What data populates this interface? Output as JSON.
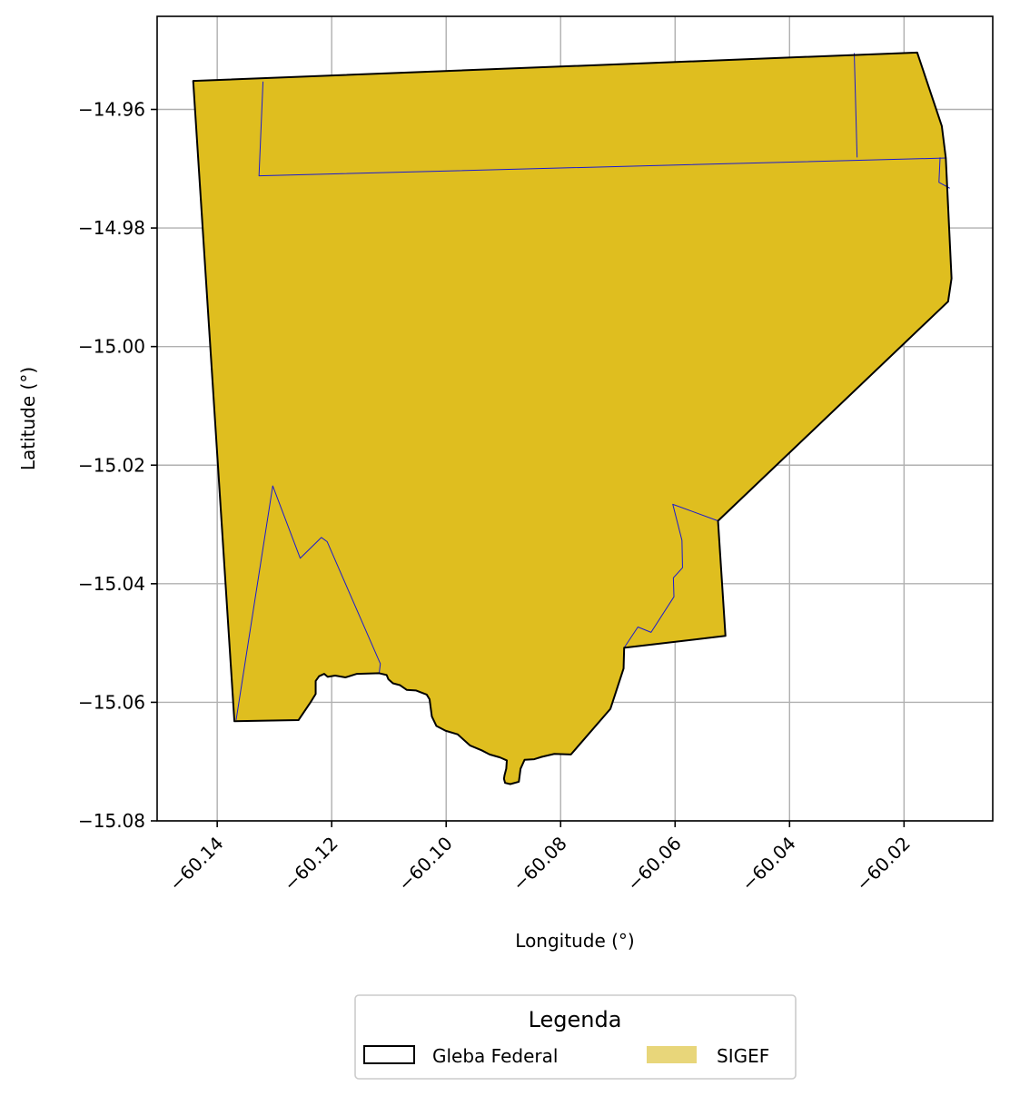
{
  "chart_data": {
    "type": "map",
    "xlabel": "Longitude (°)",
    "ylabel": "Latitude (°)",
    "xlim": [
      -60.1505,
      -60.0045
    ],
    "ylim": [
      -15.08,
      -14.9443
    ],
    "grid": true,
    "xticks": [
      -60.14,
      -60.12,
      -60.1,
      -60.08,
      -60.06,
      -60.04,
      -60.02
    ],
    "xtick_labels": [
      "−60.14",
      "−60.12",
      "−60.10",
      "−60.08",
      "−60.06",
      "−60.04",
      "−60.02"
    ],
    "yticks": [
      -14.96,
      -14.98,
      -15.0,
      -15.02,
      -15.04,
      -15.06,
      -15.08
    ],
    "ytick_labels": [
      "−14.96",
      "−14.98",
      "−15.00",
      "−15.02",
      "−15.04",
      "−15.06",
      "−15.08"
    ],
    "legend": {
      "title": "Legenda",
      "placement": "bottom-center",
      "entries": [
        {
          "label": "Gleba Federal",
          "style": "outline",
          "color": "#000000"
        },
        {
          "label": "SIGEF",
          "style": "fill",
          "color": "#e8d67a"
        }
      ]
    },
    "colors": {
      "sigef_fill": "#dfbe1f",
      "gleba_outline": "#000000",
      "parcel_lines": "#1a1ad0"
    },
    "layers": {
      "gleba_federal": [
        [
          -60.1442,
          -14.9552
        ],
        [
          -60.0177,
          -14.9504
        ],
        [
          -60.0134,
          -14.9628
        ],
        [
          -60.0127,
          -14.9682
        ],
        [
          -60.0117,
          -14.9885
        ],
        [
          -60.0123,
          -14.9924
        ],
        [
          -60.0525,
          -15.0294
        ],
        [
          -60.0512,
          -15.0488
        ],
        [
          -60.0689,
          -15.0508
        ],
        [
          -60.069,
          -15.0543
        ],
        [
          -60.0713,
          -15.0611
        ],
        [
          -60.0782,
          -15.0688
        ],
        [
          -60.0811,
          -15.0687
        ],
        [
          -60.0833,
          -15.0692
        ],
        [
          -60.0846,
          -15.0696
        ],
        [
          -60.0863,
          -15.0697
        ],
        [
          -60.087,
          -15.0712
        ],
        [
          -60.0873,
          -15.0734
        ],
        [
          -60.0888,
          -15.0738
        ],
        [
          -60.0897,
          -15.0736
        ],
        [
          -60.0899,
          -15.0729
        ],
        [
          -60.0898,
          -15.0723
        ],
        [
          -60.0895,
          -15.0712
        ],
        [
          -60.0894,
          -15.0698
        ],
        [
          -60.0906,
          -15.0693
        ],
        [
          -60.0924,
          -15.0688
        ],
        [
          -60.0938,
          -15.0681
        ],
        [
          -60.0958,
          -15.0673
        ],
        [
          -60.098,
          -15.0654
        ],
        [
          -60.1001,
          -15.0648
        ],
        [
          -60.1017,
          -15.064
        ],
        [
          -60.1025,
          -15.0624
        ],
        [
          -60.1029,
          -15.0595
        ],
        [
          -60.1034,
          -15.0587
        ],
        [
          -60.1053,
          -15.058
        ],
        [
          -60.1069,
          -15.0579
        ],
        [
          -60.1081,
          -15.0571
        ],
        [
          -60.1093,
          -15.0568
        ],
        [
          -60.1101,
          -15.0561
        ],
        [
          -60.1104,
          -15.0554
        ],
        [
          -60.1117,
          -15.0551
        ],
        [
          -60.1156,
          -15.0552
        ],
        [
          -60.1176,
          -15.0558
        ],
        [
          -60.1194,
          -15.0555
        ],
        [
          -60.1207,
          -15.0557
        ],
        [
          -60.1213,
          -15.0552
        ],
        [
          -60.1222,
          -15.0556
        ],
        [
          -60.1228,
          -15.0564
        ],
        [
          -60.1228,
          -15.0586
        ],
        [
          -60.1237,
          -15.06
        ],
        [
          -60.1258,
          -15.063
        ],
        [
          -60.137,
          -15.0632
        ]
      ],
      "sigef_lines": [
        [
          [
            -60.132,
            -14.9553
          ],
          [
            -60.1327,
            -14.9712
          ],
          [
            -60.0127,
            -14.9682
          ]
        ],
        [
          [
            -60.0287,
            -14.9505
          ],
          [
            -60.0282,
            -14.9681
          ]
        ],
        [
          [
            -60.0137,
            -14.9681
          ],
          [
            -60.0139,
            -14.9723
          ],
          [
            -60.012,
            -14.9733
          ]
        ],
        [
          [
            -60.1367,
            -15.063
          ],
          [
            -60.1303,
            -15.0235
          ],
          [
            -60.1255,
            -15.0357
          ],
          [
            -60.1218,
            -15.0322
          ],
          [
            -60.1208,
            -15.0329
          ],
          [
            -60.1115,
            -15.0535
          ],
          [
            -60.1117,
            -15.0551
          ]
        ],
        [
          [
            -60.0689,
            -15.0508
          ],
          [
            -60.0665,
            -15.0473
          ],
          [
            -60.0642,
            -15.0482
          ],
          [
            -60.0602,
            -15.0422
          ],
          [
            -60.0603,
            -15.039
          ],
          [
            -60.0587,
            -15.0373
          ],
          [
            -60.0588,
            -15.0327
          ],
          [
            -60.0604,
            -15.0266
          ],
          [
            -60.0525,
            -15.0294
          ]
        ]
      ]
    }
  }
}
